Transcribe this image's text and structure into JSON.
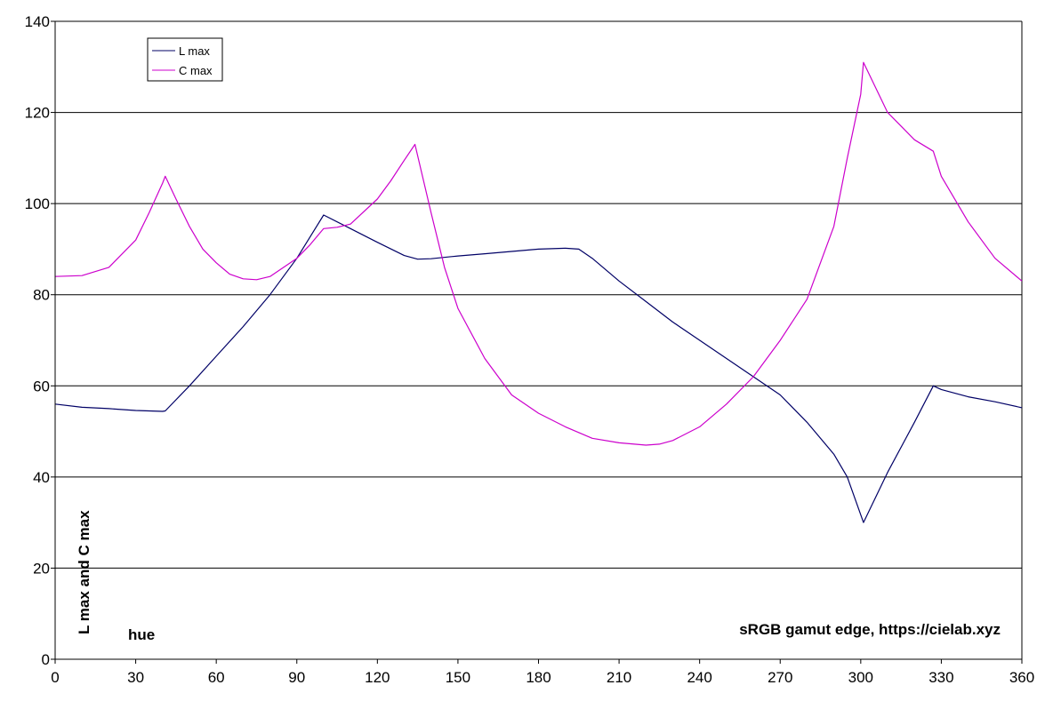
{
  "chart_data": {
    "type": "line",
    "title": "",
    "xlabel": "hue",
    "ylabel": "L max and C max",
    "annotation": "sRGB gamut edge, https://cielab.xyz",
    "xlim": [
      0,
      360
    ],
    "ylim": [
      0,
      140
    ],
    "x_ticks": [
      "0",
      "30",
      "60",
      "90",
      "120",
      "150",
      "180",
      "210",
      "240",
      "270",
      "300",
      "330",
      "360"
    ],
    "y_ticks": [
      "0",
      "20",
      "40",
      "60",
      "80",
      "100",
      "120",
      "140"
    ],
    "grid": "horizontal",
    "legend_placement": "top-left",
    "series": [
      {
        "name": "L max",
        "color": "#000066",
        "x": [
          0,
          10,
          20,
          30,
          40,
          41,
          50,
          60,
          70,
          80,
          90,
          100,
          110,
          120,
          130,
          135,
          140,
          150,
          160,
          170,
          180,
          190,
          195,
          200,
          210,
          220,
          230,
          240,
          250,
          260,
          270,
          280,
          290,
          295,
          301,
          310,
          320,
          327,
          330,
          340,
          350,
          360
        ],
        "y": [
          56,
          55.3,
          55,
          54.6,
          54.4,
          54.5,
          60,
          66.5,
          73,
          80,
          88,
          97.5,
          94.5,
          91.5,
          88.6,
          87.8,
          87.9,
          88.5,
          89,
          89.5,
          90,
          90.2,
          90,
          88,
          83,
          78.5,
          74,
          70,
          66,
          62,
          58,
          52,
          45,
          40,
          30,
          41,
          52,
          60,
          59.2,
          57.6,
          56.5,
          55.2
        ]
      },
      {
        "name": "C max",
        "color": "#cc00cc",
        "x": [
          0,
          10,
          20,
          30,
          35,
          40,
          41,
          45,
          50,
          55,
          60,
          65,
          70,
          75,
          80,
          90,
          95,
          100,
          105,
          110,
          120,
          125,
          130,
          134,
          140,
          145,
          150,
          160,
          170,
          180,
          190,
          200,
          210,
          220,
          225,
          230,
          240,
          250,
          260,
          270,
          280,
          290,
          295,
          300,
          301,
          310,
          320,
          327,
          330,
          340,
          350,
          360
        ],
        "y": [
          84,
          84.2,
          86,
          92,
          98,
          104.5,
          106,
          101,
          95,
          90,
          87,
          84.5,
          83.5,
          83.3,
          84,
          88,
          91,
          94.5,
          94.8,
          95.5,
          101,
          105,
          109.5,
          113,
          98,
          86,
          77,
          66,
          58,
          54,
          51,
          48.5,
          47.5,
          47,
          47.2,
          48,
          51,
          56,
          62,
          70,
          79,
          95,
          110,
          124,
          131,
          120,
          114,
          111.5,
          106,
          96,
          88,
          83
        ]
      }
    ]
  }
}
